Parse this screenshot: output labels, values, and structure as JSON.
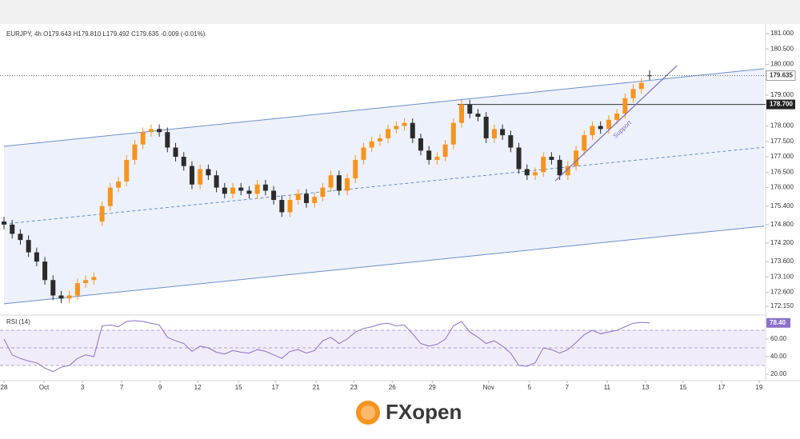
{
  "chart_data": [
    {
      "type": "candlestick",
      "title": "EURJPY, 4h  O179.643  H179.810  L179.492  C179.635  -0.009 (-0.01%)",
      "x": [
        0,
        1,
        2,
        3,
        4,
        5,
        6,
        7,
        8,
        9,
        10,
        11,
        12,
        13,
        14,
        15,
        16,
        17,
        18,
        19,
        20,
        21,
        22,
        23,
        24,
        25,
        26,
        27,
        28,
        29,
        30,
        31,
        32,
        33,
        34,
        35,
        36,
        37,
        38,
        39,
        40,
        41,
        42,
        43,
        44,
        45,
        46,
        47,
        48,
        49,
        50,
        51,
        52,
        53,
        54,
        55,
        56,
        57,
        58,
        59,
        60,
        61,
        62,
        63,
        64,
        65,
        66,
        67,
        68,
        69,
        70,
        71,
        72,
        73,
        74,
        75,
        76,
        77,
        78,
        79
      ],
      "open": [
        174.9,
        174.8,
        174.5,
        174.3,
        173.9,
        173.6,
        173.0,
        172.5,
        172.4,
        172.5,
        172.9,
        173.0,
        174.9,
        175.4,
        176.0,
        176.2,
        176.9,
        177.4,
        177.8,
        177.9,
        177.8,
        177.3,
        177.0,
        176.7,
        176.1,
        176.6,
        176.4,
        176.0,
        175.8,
        176.0,
        175.9,
        175.8,
        176.1,
        175.9,
        175.6,
        175.2,
        175.6,
        175.8,
        175.5,
        175.7,
        176.0,
        176.4,
        175.9,
        176.3,
        176.9,
        177.3,
        177.5,
        177.6,
        177.9,
        178.0,
        178.1,
        177.6,
        177.2,
        176.9,
        177.0,
        177.4,
        178.1,
        178.7,
        178.4,
        178.3,
        177.6,
        177.9,
        177.7,
        177.3,
        176.6,
        176.4,
        176.5,
        177.0,
        176.9,
        176.4,
        176.7,
        177.2,
        177.7,
        178.0,
        177.9,
        178.2,
        178.4,
        178.9,
        179.2,
        179.643
      ],
      "high": [
        175.05,
        174.95,
        174.65,
        174.45,
        174.05,
        173.75,
        173.15,
        172.65,
        172.65,
        173.05,
        173.15,
        173.25,
        175.55,
        176.15,
        176.35,
        177.05,
        177.55,
        177.95,
        178.05,
        178.05,
        177.95,
        177.45,
        177.15,
        176.85,
        176.75,
        176.75,
        176.55,
        176.15,
        176.15,
        176.15,
        176.05,
        176.25,
        176.25,
        176.05,
        175.75,
        175.75,
        175.95,
        175.95,
        175.85,
        176.15,
        176.55,
        176.55,
        176.45,
        177.05,
        177.45,
        177.65,
        177.75,
        178.05,
        178.15,
        178.25,
        178.25,
        177.75,
        177.35,
        177.15,
        177.55,
        178.25,
        178.85,
        178.85,
        178.55,
        178.45,
        178.05,
        178.05,
        177.85,
        177.45,
        176.75,
        176.65,
        177.15,
        177.15,
        177.05,
        176.85,
        177.35,
        177.85,
        178.15,
        178.15,
        178.35,
        178.55,
        179.05,
        179.35,
        179.55,
        179.81
      ],
      "low": [
        174.65,
        174.35,
        174.15,
        173.75,
        173.45,
        172.85,
        172.35,
        172.25,
        172.25,
        172.35,
        172.75,
        172.85,
        174.75,
        175.25,
        175.85,
        176.05,
        176.75,
        177.25,
        177.65,
        177.65,
        177.15,
        176.85,
        176.55,
        175.95,
        175.95,
        176.25,
        175.85,
        175.65,
        175.65,
        175.75,
        175.65,
        175.65,
        175.75,
        175.45,
        175.05,
        175.05,
        175.45,
        175.35,
        175.35,
        175.55,
        175.85,
        175.75,
        175.75,
        176.15,
        176.75,
        177.15,
        177.35,
        177.45,
        177.75,
        177.85,
        177.45,
        177.05,
        176.75,
        176.75,
        176.85,
        177.25,
        177.95,
        178.25,
        178.15,
        177.45,
        177.45,
        177.55,
        177.15,
        176.45,
        176.25,
        176.25,
        176.35,
        176.75,
        176.25,
        176.25,
        176.55,
        177.05,
        177.55,
        177.75,
        177.75,
        178.05,
        178.25,
        178.75,
        179.05,
        179.492
      ],
      "close": [
        174.8,
        174.5,
        174.3,
        173.9,
        173.6,
        173.0,
        172.5,
        172.4,
        172.5,
        172.9,
        173.0,
        173.1,
        175.4,
        176.0,
        176.2,
        176.9,
        177.4,
        177.8,
        177.9,
        177.8,
        177.3,
        177.0,
        176.7,
        176.1,
        176.6,
        176.4,
        176.0,
        175.8,
        176.0,
        175.9,
        175.8,
        176.1,
        175.9,
        175.6,
        175.2,
        175.6,
        175.8,
        175.5,
        175.7,
        176.0,
        176.4,
        175.9,
        176.3,
        176.9,
        177.3,
        177.5,
        177.6,
        177.9,
        178.0,
        178.1,
        177.6,
        177.2,
        176.9,
        177.0,
        177.4,
        178.1,
        178.7,
        178.4,
        178.3,
        177.6,
        177.9,
        177.7,
        177.3,
        176.6,
        176.4,
        176.5,
        177.0,
        176.9,
        176.4,
        176.7,
        177.2,
        177.7,
        178.0,
        177.9,
        178.2,
        178.4,
        178.9,
        179.2,
        179.4,
        179.635
      ],
      "up_color": "#f7941d",
      "down_color": "#2b2b2b",
      "xlim": [
        0,
        93
      ],
      "ylim": [
        171.89,
        181.31
      ],
      "xticks": [
        {
          "value": 0,
          "label": "28"
        },
        {
          "value": 4.9,
          "label": "Oct"
        },
        {
          "value": 9.6,
          "label": "3"
        },
        {
          "value": 14.4,
          "label": "7"
        },
        {
          "value": 19.1,
          "label": "9"
        },
        {
          "value": 23.7,
          "label": "12"
        },
        {
          "value": 28.7,
          "label": "15"
        },
        {
          "value": 33.2,
          "label": "17"
        },
        {
          "value": 38.2,
          "label": "21"
        },
        {
          "value": 42.8,
          "label": "23"
        },
        {
          "value": 47.5,
          "label": "26"
        },
        {
          "value": 52.4,
          "label": "29"
        },
        {
          "value": 59.3,
          "label": "Nov"
        },
        {
          "value": 64.3,
          "label": "5"
        },
        {
          "value": 68.9,
          "label": "7"
        },
        {
          "value": 73.8,
          "label": "11"
        },
        {
          "value": 78.5,
          "label": "13"
        },
        {
          "value": 83.1,
          "label": "15"
        },
        {
          "value": 87.8,
          "label": "17"
        },
        {
          "value": 92.4,
          "label": "19"
        }
      ],
      "yticks": [
        {
          "value": 181,
          "label": "181.000"
        },
        {
          "value": 180.5,
          "label": "180.500"
        },
        {
          "value": 180,
          "label": "180.000"
        },
        {
          "value": 179,
          "label": "179.000"
        },
        {
          "value": 178,
          "label": "178.000"
        },
        {
          "value": 177.5,
          "label": "177.500"
        },
        {
          "value": 177,
          "label": "177.000"
        },
        {
          "value": 176.5,
          "label": "176.500"
        },
        {
          "value": 176,
          "label": "176.000"
        },
        {
          "value": 175.4,
          "label": "175.400"
        },
        {
          "value": 174.8,
          "label": "174.800"
        },
        {
          "value": 174.2,
          "label": "174.200"
        },
        {
          "value": 173.6,
          "label": "173.600"
        },
        {
          "value": 173.1,
          "label": "173.100"
        },
        {
          "value": 172.6,
          "label": "172.600"
        },
        {
          "value": 172.15,
          "label": "172.150"
        }
      ],
      "channel": {
        "color": "#6b8fc9",
        "fill": "#e8eefb",
        "upper": {
          "x": [
            0,
            93
          ],
          "y": [
            177.34,
            179.86
          ]
        },
        "middle": {
          "x": [
            0,
            93
          ],
          "y": [
            174.82,
            177.31
          ]
        },
        "lower": {
          "x": [
            0,
            93
          ],
          "y": [
            172.23,
            174.75
          ]
        }
      },
      "support": {
        "x": [
          67.45,
          82.35
        ],
        "y": [
          176.22,
          179.96
        ],
        "label": "Support",
        "color": "#7e6bc4"
      },
      "level": {
        "x_start": 55.5,
        "value": 178.7,
        "label": "178.700"
      },
      "last_price": {
        "value": 179.635,
        "label": "179.635"
      }
    },
    {
      "type": "line",
      "title": "RSI (14)",
      "color": "#8e6fc9",
      "x": [
        0,
        1,
        2,
        3,
        4,
        5,
        6,
        7,
        8,
        9,
        10,
        11,
        12,
        13,
        14,
        15,
        16,
        17,
        18,
        19,
        20,
        21,
        22,
        23,
        24,
        25,
        26,
        27,
        28,
        29,
        30,
        31,
        32,
        33,
        34,
        35,
        36,
        37,
        38,
        39,
        40,
        41,
        42,
        43,
        44,
        45,
        46,
        47,
        48,
        49,
        50,
        51,
        52,
        53,
        54,
        55,
        56,
        57,
        58,
        59,
        60,
        61,
        62,
        63,
        64,
        65,
        66,
        67,
        68,
        69,
        70,
        71,
        72,
        73,
        74,
        75,
        76,
        77,
        78,
        79
      ],
      "values": [
        60,
        42,
        38,
        35,
        33,
        27,
        23,
        28,
        30,
        38,
        42,
        40,
        75,
        76,
        74,
        80,
        81,
        80,
        78,
        76,
        62,
        58,
        55,
        46,
        52,
        50,
        45,
        43,
        47,
        45,
        44,
        48,
        46,
        42,
        38,
        46,
        48,
        44,
        47,
        58,
        62,
        55,
        60,
        68,
        72,
        74,
        77,
        78,
        75,
        76,
        66,
        55,
        52,
        54,
        60,
        75,
        80,
        68,
        62,
        55,
        58,
        52,
        44,
        30,
        29,
        33,
        50,
        48,
        44,
        48,
        56,
        65,
        70,
        66,
        68,
        70,
        74,
        78,
        79,
        78.4
      ],
      "xlim": [
        0,
        93
      ],
      "ylim": [
        13.6,
        85.5
      ],
      "yticks": [
        {
          "value": 60,
          "label": "60.00"
        },
        {
          "value": 40,
          "label": "40.00"
        },
        {
          "value": 20,
          "label": "20.00"
        }
      ],
      "bands": [
        70,
        50,
        30
      ],
      "last": {
        "value": 78.4,
        "label": "78.40"
      }
    }
  ],
  "logo": {
    "text": "FXopen"
  }
}
